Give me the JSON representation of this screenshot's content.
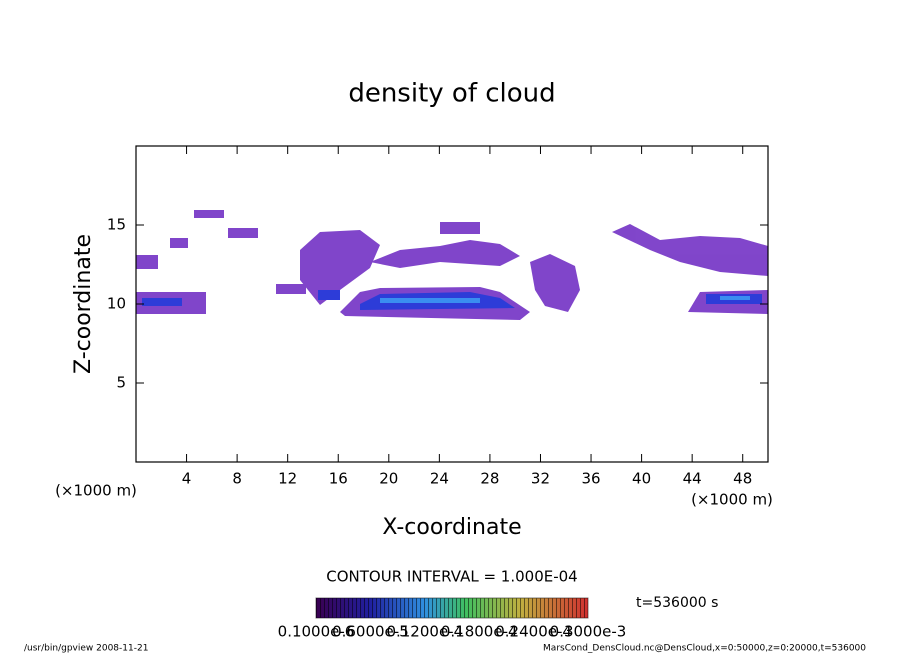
{
  "chart_data": {
    "type": "contour",
    "title": "density of cloud",
    "x_label": "X-coordinate",
    "y_label": "Z-coordinate",
    "x_unit": "(×1000 m)",
    "y_unit": "(×1000 m)",
    "xlim": [
      0,
      50
    ],
    "xticks": [
      4,
      8,
      12,
      16,
      20,
      24,
      28,
      32,
      36,
      40,
      44,
      48
    ],
    "ylim": [
      0,
      20
    ],
    "yticks": [
      5,
      10,
      15
    ],
    "contour_interval": "CONTOUR INTERVAL = 1.000E-04",
    "time_label": "t=536000 s",
    "colorbar_labels": [
      "0.1000e-6",
      "0.6000e-5",
      "0.1200e-4",
      "0.1800e-4",
      "0.2400e-4",
      "0.3000e-3"
    ],
    "footer_left": "/usr/bin/gpview   2008-11-21",
    "footer_right": "MarsCond_DensCloud.nc@DensCloud,x=0:50000,z=0:20000,t=536000"
  }
}
